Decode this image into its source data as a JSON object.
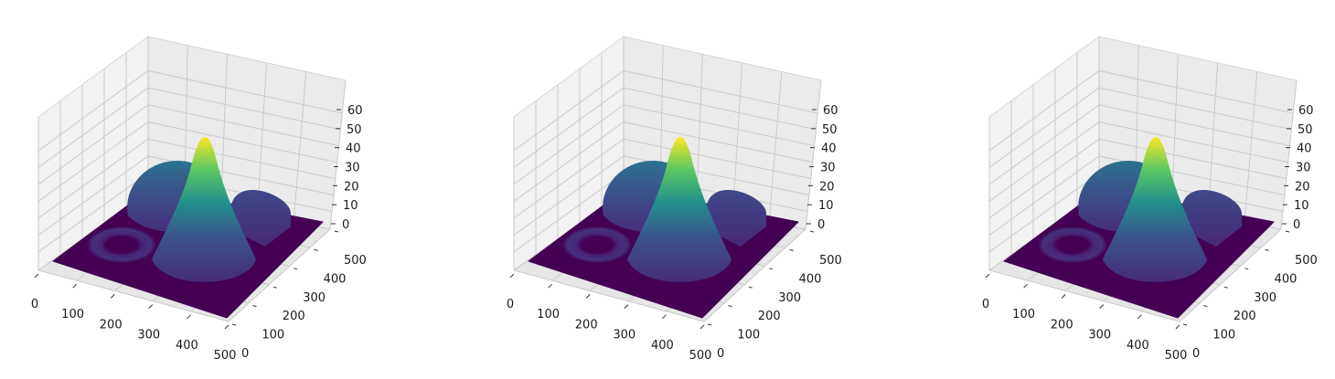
{
  "chart_data": [
    {
      "type": "surface3d",
      "colormap": "viridis",
      "colormap_stops": [
        "#440154",
        "#3b528b",
        "#21918c",
        "#5ec962",
        "#fde725"
      ],
      "x_ticks": [
        "0",
        "100",
        "200",
        "300",
        "400",
        "500"
      ],
      "y_ticks": [
        "0",
        "100",
        "200",
        "300",
        "400",
        "500"
      ],
      "z_ticks": [
        "0",
        "10",
        "20",
        "30",
        "40",
        "50",
        "60"
      ],
      "xlim": [
        0,
        500
      ],
      "ylim": [
        0,
        500
      ],
      "zlim": [
        0,
        68
      ],
      "grid": true,
      "features": [
        {
          "shape": "cone",
          "center_x": 300,
          "center_y": 250,
          "radius": 130,
          "height": 68
        },
        {
          "shape": "dome",
          "center_x": 130,
          "center_y": 330,
          "radius": 110,
          "height": 40
        },
        {
          "shape": "raised-plateau",
          "center_x": 310,
          "center_y": 430,
          "size": 90,
          "height": 20
        },
        {
          "shape": "torus",
          "center_x": 140,
          "center_y": 120,
          "major_radius": 55,
          "minor_radius": 25,
          "height": 8
        }
      ]
    },
    {
      "type": "surface3d",
      "colormap": "viridis",
      "colormap_stops": [
        "#440154",
        "#3b528b",
        "#21918c",
        "#5ec962",
        "#fde725"
      ],
      "x_ticks": [
        "0",
        "100",
        "200",
        "300",
        "400",
        "500"
      ],
      "y_ticks": [
        "0",
        "100",
        "200",
        "300",
        "400",
        "500"
      ],
      "z_ticks": [
        "0",
        "10",
        "20",
        "30",
        "40",
        "50",
        "60"
      ],
      "xlim": [
        0,
        500
      ],
      "ylim": [
        0,
        500
      ],
      "zlim": [
        0,
        68
      ],
      "grid": true,
      "features": [
        {
          "shape": "cone",
          "center_x": 300,
          "center_y": 250,
          "radius": 130,
          "height": 68
        },
        {
          "shape": "dome",
          "center_x": 130,
          "center_y": 330,
          "radius": 110,
          "height": 40
        },
        {
          "shape": "raised-plateau",
          "center_x": 310,
          "center_y": 430,
          "size": 90,
          "height": 20
        },
        {
          "shape": "torus",
          "center_x": 140,
          "center_y": 120,
          "major_radius": 55,
          "minor_radius": 25,
          "height": 8
        }
      ]
    },
    {
      "type": "surface3d",
      "colormap": "viridis",
      "colormap_stops": [
        "#440154",
        "#3b528b",
        "#21918c",
        "#5ec962",
        "#fde725"
      ],
      "x_ticks": [
        "0",
        "100",
        "200",
        "300",
        "400",
        "500"
      ],
      "y_ticks": [
        "0",
        "100",
        "200",
        "300",
        "400",
        "500"
      ],
      "z_ticks": [
        "0",
        "10",
        "20",
        "30",
        "40",
        "50",
        "60"
      ],
      "xlim": [
        0,
        500
      ],
      "ylim": [
        0,
        500
      ],
      "zlim": [
        0,
        68
      ],
      "grid": true,
      "features": [
        {
          "shape": "cone",
          "center_x": 300,
          "center_y": 250,
          "radius": 130,
          "height": 68
        },
        {
          "shape": "dome",
          "center_x": 130,
          "center_y": 330,
          "radius": 110,
          "height": 40
        },
        {
          "shape": "raised-plateau",
          "center_x": 310,
          "center_y": 430,
          "size": 90,
          "height": 20
        },
        {
          "shape": "torus",
          "center_x": 140,
          "center_y": 120,
          "major_radius": 55,
          "minor_radius": 25,
          "height": 8
        }
      ]
    }
  ]
}
